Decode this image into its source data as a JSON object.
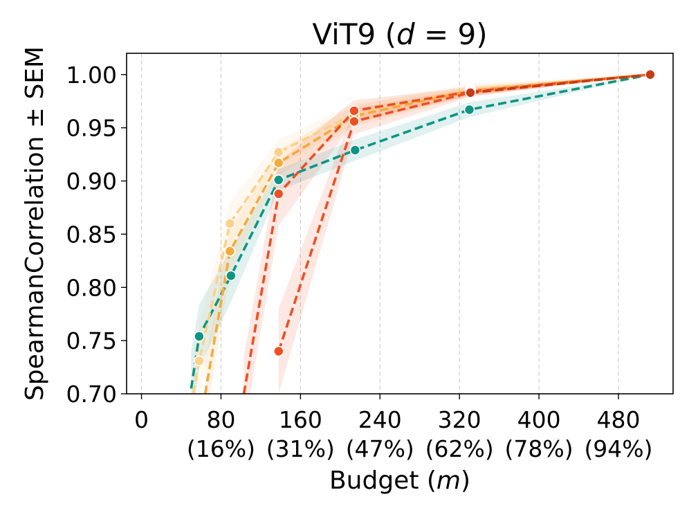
{
  "chart_data": {
    "type": "line",
    "title": "ViT9 (",
    "title_var": "d",
    "title_eq": " = 9)",
    "xlabel": "Budget (",
    "xlabel_var": "m",
    "xlabel_end": ")",
    "ylabel": "SpearmanCorrelation ± SEM",
    "xlim": [
      -15,
      535
    ],
    "ylim": [
      0.7,
      1.02
    ],
    "xticks": [
      0,
      80,
      160,
      240,
      320,
      400,
      480
    ],
    "xtick_labels": [
      "0",
      "80",
      "160",
      "240",
      "320",
      "400",
      "480"
    ],
    "xtick_pct": [
      "",
      "(16%)",
      "(31%)",
      "(47%)",
      "(62%)",
      "(78%)",
      "(94%)"
    ],
    "yticks": [
      0.7,
      0.75,
      0.8,
      0.85,
      0.9,
      0.95,
      1.0
    ],
    "ytick_labels": [
      "0.70",
      "0.75",
      "0.80",
      "0.85",
      "0.90",
      "0.95",
      "1.00"
    ],
    "grid": "x-dashed",
    "series": [
      {
        "name": "teal",
        "color": "#0e9483",
        "x": [
          50,
          58,
          90,
          138,
          215,
          330,
          512
        ],
        "y": [
          0.705,
          0.754,
          0.811,
          0.901,
          0.929,
          0.967,
          1.0
        ],
        "sem": [
          0.035,
          0.03,
          0.025,
          0.01,
          0.01,
          0.007,
          0.0
        ],
        "markers": [
          false,
          true,
          true,
          true,
          true,
          true,
          false
        ]
      },
      {
        "name": "light orange",
        "color": "#fbd18b",
        "x": [
          52,
          58,
          89,
          138,
          214,
          331,
          512
        ],
        "y": [
          0.7,
          0.731,
          0.86,
          0.927,
          0.963,
          0.986,
          1.0
        ],
        "sem": [
          0.04,
          0.035,
          0.02,
          0.012,
          0.01,
          0.005,
          0.0
        ],
        "markers": [
          false,
          true,
          true,
          true,
          true,
          true,
          false
        ]
      },
      {
        "name": "orange",
        "color": "#f5aa3c",
        "x": [
          64,
          89,
          138,
          214,
          331,
          512
        ],
        "y": [
          0.7,
          0.834,
          0.917,
          0.961,
          0.985,
          1.0
        ],
        "sem": [
          0.03,
          0.02,
          0.012,
          0.01,
          0.005,
          0.0
        ],
        "markers": [
          false,
          true,
          true,
          true,
          true,
          false
        ]
      },
      {
        "name": "red-orange",
        "color": "#ee4f23",
        "x": [
          103,
          138,
          214,
          331,
          512
        ],
        "y": [
          0.7,
          0.888,
          0.966,
          0.984,
          1.0
        ],
        "sem": [
          0.035,
          0.03,
          0.01,
          0.004,
          0.0
        ],
        "markers": [
          false,
          true,
          true,
          true,
          false
        ]
      },
      {
        "name": "red-orange 2",
        "color": "#ee4f23",
        "x": [
          138,
          214,
          331,
          512
        ],
        "y": [
          0.74,
          0.956,
          0.983,
          1.0
        ],
        "sem": [
          0.04,
          0.012,
          0.004,
          0.0
        ],
        "markers": [
          true,
          true,
          true,
          true
        ]
      },
      {
        "name": "dark red",
        "color": "#c73b14",
        "x": [
          331,
          512
        ],
        "y": [
          0.983,
          1.0
        ],
        "sem": [
          0.002,
          0.0
        ],
        "markers": [
          true,
          true
        ]
      }
    ]
  }
}
